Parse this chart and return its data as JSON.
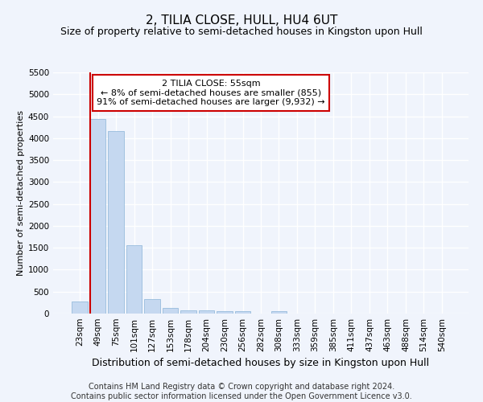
{
  "title": "2, TILIA CLOSE, HULL, HU4 6UT",
  "subtitle": "Size of property relative to semi-detached houses in Kingston upon Hull",
  "xlabel": "Distribution of semi-detached houses by size in Kingston upon Hull",
  "ylabel": "Number of semi-detached properties",
  "bar_color": "#c5d8f0",
  "bar_edge_color": "#8ab4d8",
  "annotation_box_color": "#ffffff",
  "annotation_box_edge_color": "#cc0000",
  "annotation_text": "2 TILIA CLOSE: 55sqm\n← 8% of semi-detached houses are smaller (855)\n91% of semi-detached houses are larger (9,932) →",
  "categories": [
    "23sqm",
    "49sqm",
    "75sqm",
    "101sqm",
    "127sqm",
    "153sqm",
    "178sqm",
    "204sqm",
    "230sqm",
    "256sqm",
    "282sqm",
    "308sqm",
    "333sqm",
    "359sqm",
    "385sqm",
    "411sqm",
    "437sqm",
    "463sqm",
    "488sqm",
    "514sqm",
    "540sqm"
  ],
  "values": [
    280,
    4430,
    4160,
    1560,
    330,
    130,
    80,
    65,
    60,
    60,
    0,
    60,
    0,
    0,
    0,
    0,
    0,
    0,
    0,
    0,
    0
  ],
  "highlight_index": 1,
  "red_line_index": 1,
  "ylim": [
    0,
    5500
  ],
  "yticks": [
    0,
    500,
    1000,
    1500,
    2000,
    2500,
    3000,
    3500,
    4000,
    4500,
    5000,
    5500
  ],
  "footnote": "Contains HM Land Registry data © Crown copyright and database right 2024.\nContains public sector information licensed under the Open Government Licence v3.0.",
  "bg_color": "#f0f4fc",
  "plot_bg_color": "#f0f4fc",
  "grid_color": "#ffffff",
  "title_fontsize": 11,
  "subtitle_fontsize": 9,
  "ylabel_fontsize": 8,
  "xlabel_fontsize": 9,
  "footnote_fontsize": 7,
  "tick_fontsize": 7.5,
  "annotation_fontsize": 8
}
